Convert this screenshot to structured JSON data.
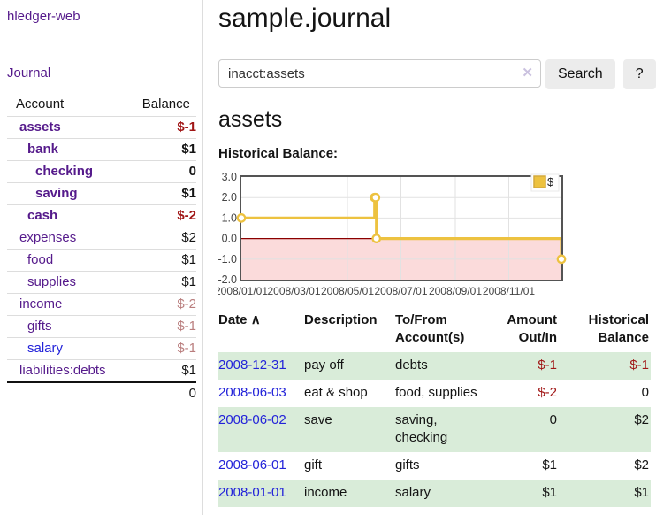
{
  "app": {
    "title": "hledger-web"
  },
  "sidebar": {
    "journal_link": "Journal",
    "accounts_table": {
      "headers": {
        "account": "Account",
        "balance": "Balance"
      },
      "rows": [
        {
          "name": "assets",
          "balance": "$-1",
          "indent": 0,
          "bold": true,
          "amount_class": "neg-strong",
          "link_color": "purple"
        },
        {
          "name": "bank",
          "balance": "$1",
          "indent": 1,
          "bold": true,
          "amount_class": "",
          "link_color": "purple"
        },
        {
          "name": "checking",
          "balance": "0",
          "indent": 2,
          "bold": true,
          "amount_class": "",
          "link_color": "purple"
        },
        {
          "name": "saving",
          "balance": "$1",
          "indent": 2,
          "bold": true,
          "amount_class": "",
          "link_color": "purple"
        },
        {
          "name": "cash",
          "balance": "$-2",
          "indent": 1,
          "bold": true,
          "amount_class": "neg-strong",
          "link_color": "purple"
        },
        {
          "name": "expenses",
          "balance": "$2",
          "indent": 0,
          "bold": false,
          "amount_class": "",
          "link_color": "purple"
        },
        {
          "name": "food",
          "balance": "$1",
          "indent": 1,
          "bold": false,
          "amount_class": "",
          "link_color": "purple"
        },
        {
          "name": "supplies",
          "balance": "$1",
          "indent": 1,
          "bold": false,
          "amount_class": "",
          "link_color": "purple"
        },
        {
          "name": "income",
          "balance": "$-2",
          "indent": 0,
          "bold": false,
          "amount_class": "neg-soft",
          "link_color": "purple"
        },
        {
          "name": "gifts",
          "balance": "$-1",
          "indent": 1,
          "bold": false,
          "amount_class": "neg-soft",
          "link_color": "purple"
        },
        {
          "name": "salary",
          "balance": "$-1",
          "indent": 1,
          "bold": false,
          "amount_class": "neg-soft",
          "link_color": "blue"
        },
        {
          "name": "liabilities:debts",
          "balance": "$1",
          "indent": 0,
          "bold": false,
          "amount_class": "",
          "link_color": "purple"
        }
      ],
      "total": "0"
    }
  },
  "main": {
    "title": "sample.journal",
    "search": {
      "value": "inacct:assets",
      "clear_icon": "✕",
      "button": "Search",
      "help_button": "?"
    },
    "account_heading": "assets",
    "chart_heading": "Historical Balance:",
    "register_table": {
      "headers": {
        "date": "Date",
        "sort_icon": "∧",
        "description": "Description",
        "accounts": "To/From Account(s)",
        "amount": "Amount Out/In",
        "balance": "Historical Balance"
      },
      "rows": [
        {
          "date": "2008-12-31",
          "description": "pay off",
          "accounts": "debts",
          "amount": "$-1",
          "balance": "$-1",
          "amount_negative": true,
          "balance_negative": true
        },
        {
          "date": "2008-06-03",
          "description": "eat & shop",
          "accounts": "food, supplies",
          "amount": "$-2",
          "balance": "0",
          "amount_negative": true,
          "balance_negative": false
        },
        {
          "date": "2008-06-02",
          "description": "save",
          "accounts": "saving, checking",
          "amount": "0",
          "balance": "$2",
          "amount_negative": false,
          "balance_negative": false
        },
        {
          "date": "2008-06-01",
          "description": "gift",
          "accounts": "gifts",
          "amount": "$1",
          "balance": "$2",
          "amount_negative": false,
          "balance_negative": false
        },
        {
          "date": "2008-01-01",
          "description": "income",
          "accounts": "salary",
          "amount": "$1",
          "balance": "$1",
          "amount_negative": false,
          "balance_negative": false
        }
      ]
    }
  },
  "chart_data": {
    "type": "line",
    "title": "Historical Balance:",
    "step": true,
    "series": [
      {
        "name": "$",
        "color": "#edc240",
        "points": [
          [
            "2008-01-01",
            1
          ],
          [
            "2008-06-01",
            2
          ],
          [
            "2008-06-02",
            2
          ],
          [
            "2008-06-03",
            0
          ],
          [
            "2008-12-31",
            -1
          ]
        ]
      }
    ],
    "x_range": [
      "2008/01/01",
      "2008/12/31"
    ],
    "x_ticks": [
      "2008/01/01",
      "2008/03/01",
      "2008/05/01",
      "2008/07/01",
      "2008/09/01",
      "2008/11/01"
    ],
    "y_ticks": [
      3.0,
      2.0,
      1.0,
      0.0,
      -1.0,
      -2.0
    ],
    "ylim": [
      -2,
      3
    ],
    "grid": true,
    "legend": {
      "label": "$",
      "position": "top-right"
    },
    "negative_region_color": "#fbdbdb",
    "zero_line_color": "#8b0000"
  },
  "colors": {
    "link_purple": "#551a8b",
    "link_blue": "#2323d9",
    "negative_strong": "#a01515",
    "negative_soft": "#b97d7d",
    "row_stripe_green": "#d9ecd9",
    "chart_line_gold": "#edc240",
    "negative_region_pink": "#fbdbdb",
    "zero_line_darkred": "#8b0000"
  }
}
